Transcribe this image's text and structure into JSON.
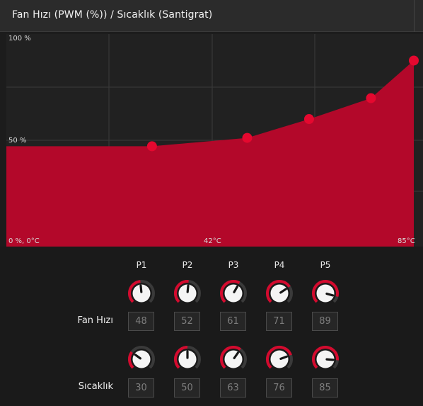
{
  "header": {
    "title": "Fan Hızı (PWM (%)) / Sıcaklık (Santigrat)"
  },
  "chart_labels": {
    "y_top": "100 %",
    "y_mid": "50 %",
    "origin": "0 %, 0°C",
    "x_mid": "42°C",
    "x_right": "85°C"
  },
  "chart_data": {
    "type": "area",
    "x_unit": "°C",
    "y_unit": "%",
    "xlim": [
      0,
      85
    ],
    "ylim": [
      0,
      100
    ],
    "grid": true,
    "series": [
      {
        "x": [
          30,
          50,
          63,
          76,
          85
        ],
        "y": [
          48,
          52,
          61,
          71,
          89
        ],
        "color": "#b3082a",
        "point_color": "#e5082f"
      }
    ]
  },
  "controls": {
    "columns": [
      "P1",
      "P2",
      "P3",
      "P4",
      "P5"
    ],
    "fan": {
      "label": "Fan Hızı",
      "values": [
        "48",
        "52",
        "61",
        "71",
        "89"
      ]
    },
    "temp": {
      "label": "Sıcaklık",
      "values": [
        "30",
        "50",
        "63",
        "76",
        "85"
      ]
    },
    "knob_range": {
      "fan": [
        0,
        100
      ],
      "temp": [
        0,
        100
      ]
    },
    "accent": "#d40a2e",
    "track": "#3a3a3a"
  }
}
